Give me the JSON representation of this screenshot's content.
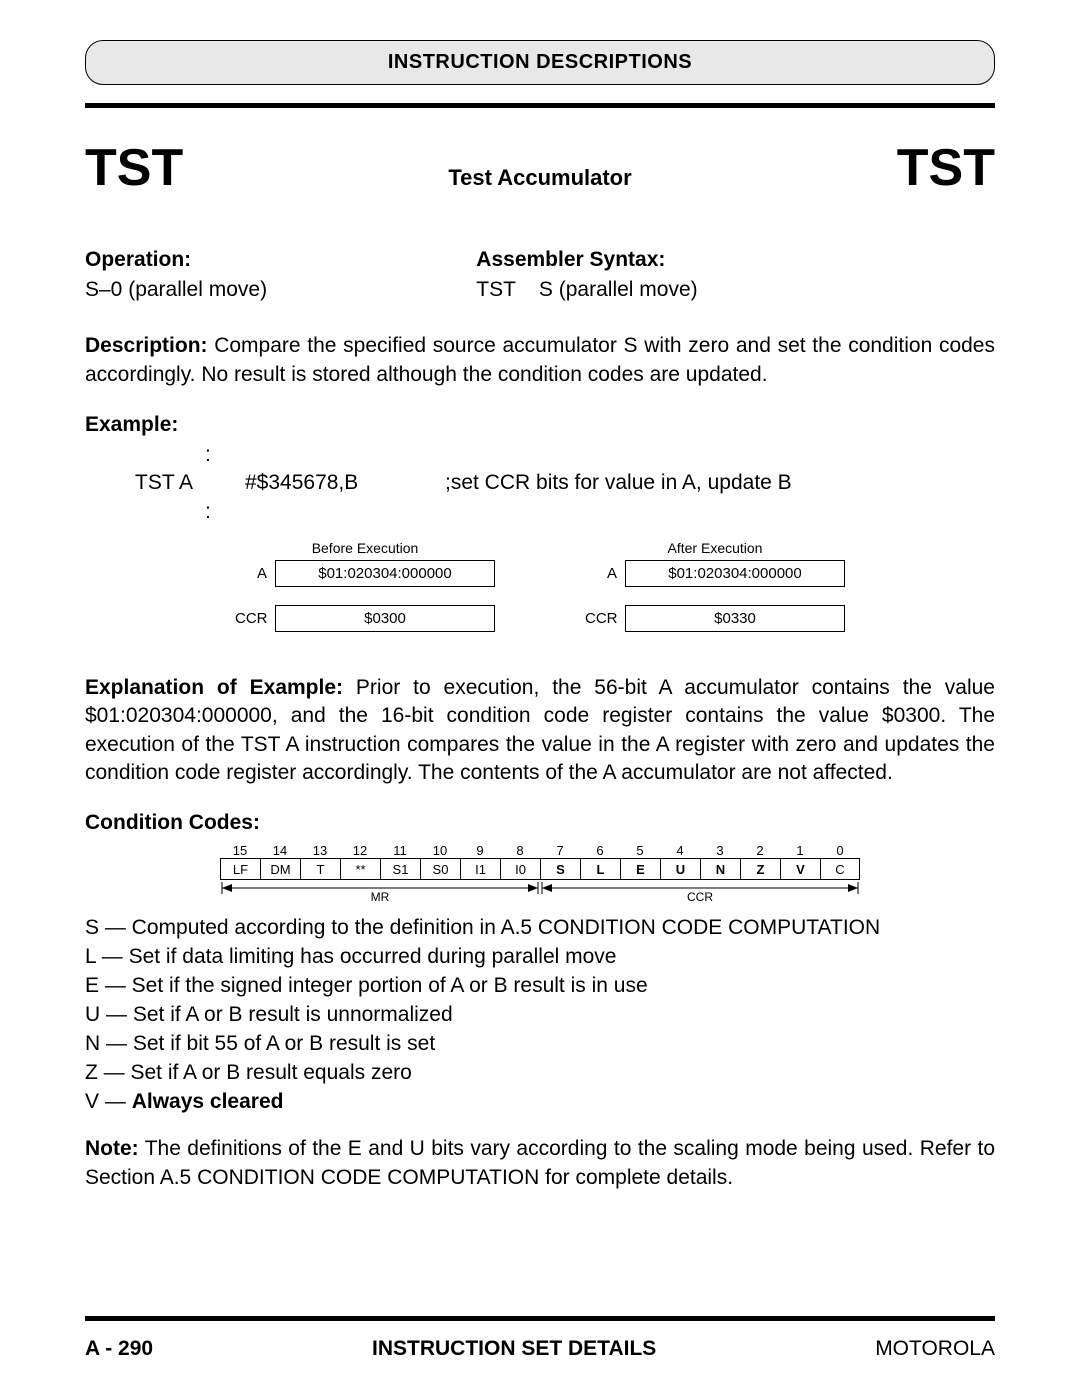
{
  "header": {
    "title": "INSTRUCTION DESCRIPTIONS"
  },
  "title_row": {
    "mnemonic_left": "TST",
    "name": "Test Accumulator",
    "mnemonic_right": "TST"
  },
  "operation": {
    "label": "Operation:",
    "text": "S–0 (parallel move)"
  },
  "syntax": {
    "label": "Assembler Syntax:",
    "text": "TST    S (parallel move)"
  },
  "description": {
    "label": "Description:",
    "text": " Compare the specified source accumulator S with zero and set the condition codes accordingly. No result is stored although the condition codes are updated."
  },
  "example": {
    "label": "Example:",
    "line1_instr": "TST A",
    "line1_operand": "#$345678,B",
    "line1_comment": ";set CCR bits for value in A, update B",
    "before_label": "Before Execution",
    "after_label": "After Execution",
    "reg1_name": "A",
    "reg1_before": "$01:020304:000000",
    "reg1_after": "$01:020304:000000",
    "reg2_name": "CCR",
    "reg2_before": "$0300",
    "reg2_after": "$0330"
  },
  "explanation": {
    "label": "Explanation of Example:",
    "text": " Prior to execution, the 56-bit A accumulator contains the value $01:020304:000000, and the 16-bit condition code register contains the value $0300. The execution of the TST A instruction compares the value in the A register with zero and updates the condition code register accordingly. The contents of the A accumulator are not affected."
  },
  "condition_codes": {
    "label": "Condition Codes:",
    "bit_numbers": [
      "15",
      "14",
      "13",
      "12",
      "11",
      "10",
      "9",
      "8",
      "7",
      "6",
      "5",
      "4",
      "3",
      "2",
      "1",
      "0"
    ],
    "bit_labels": [
      "LF",
      "DM",
      "T",
      "**",
      "S1",
      "S0",
      "I1",
      "I0",
      "S",
      "L",
      "E",
      "U",
      "N",
      "Z",
      "V",
      "C"
    ],
    "bold_indices": [
      8,
      9,
      10,
      11,
      12,
      13,
      14
    ],
    "group_mr": "MR",
    "group_ccr": "CCR",
    "rows": [
      {
        "code": "S",
        "desc": " — Computed according to the definition in A.5 CONDITION CODE COMPUTATION"
      },
      {
        "code": "L",
        "desc": " — Set if data limiting has occurred during parallel move"
      },
      {
        "code": "E",
        "desc": " — Set if the signed integer portion of A or B result is in use"
      },
      {
        "code": "U",
        "desc": " — Set if A or B result is unnormalized"
      },
      {
        "code": "N",
        "desc": " — Set if bit 55 of A or B result is set"
      },
      {
        "code": "Z",
        "desc": " — Set if A or B result equals zero"
      }
    ],
    "v_row_prefix": "V — ",
    "v_row_bold": "Always cleared"
  },
  "note": {
    "label": "Note:",
    "text": " The definitions of the E and U bits vary according to the scaling mode being used. Refer to Section A.5 CONDITION CODE COMPUTATION for complete details."
  },
  "footer": {
    "page": "A - 290",
    "center": "INSTRUCTION SET DETAILS",
    "right": "MOTOROLA"
  }
}
